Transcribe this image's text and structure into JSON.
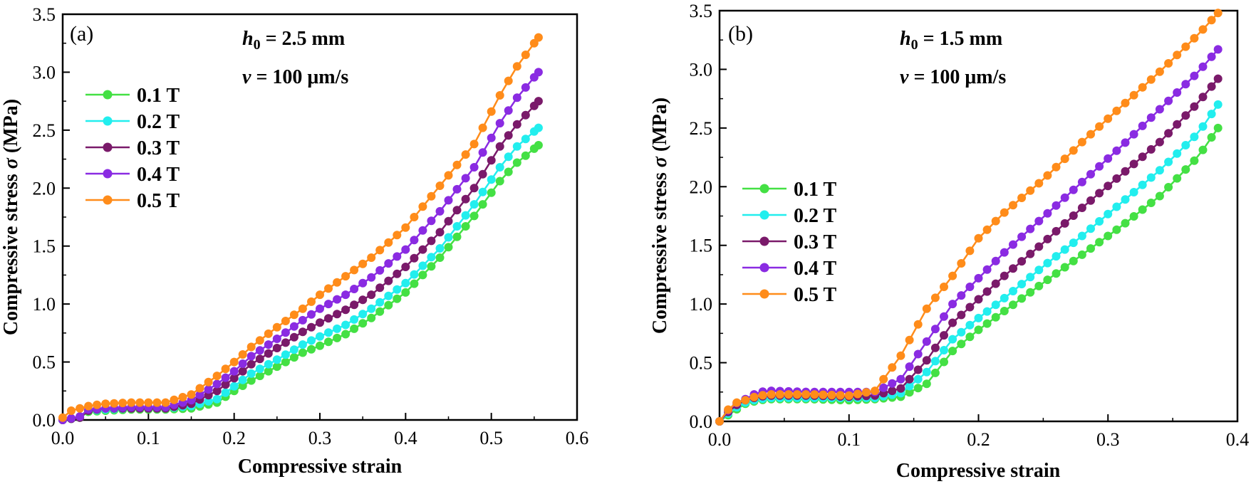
{
  "colors": {
    "0.1 T": "#44e044",
    "0.2 T": "#22eeee",
    "0.3 T": "#7a1a6a",
    "0.4 T": "#8a2be2",
    "0.5 T": "#ff8c1a"
  },
  "chart_data": [
    {
      "type": "line",
      "panel_label": "(a)",
      "annotation_h": "h",
      "annotation_h_sub": "0",
      "annotation_h_value": " = 2.5 mm",
      "annotation_v": "v",
      "annotation_v_value": " = 100 μm/s",
      "xlabel": "Compressive strain",
      "ylabel_main": "Compressive stress ",
      "ylabel_sym": "σ",
      "ylabel_unit": " (MPa)",
      "xlim": [
        0,
        0.6
      ],
      "ylim": [
        0,
        3.5
      ],
      "xticks": [
        "0.0",
        "0.1",
        "0.2",
        "0.3",
        "0.4",
        "0.5",
        "0.6"
      ],
      "yticks": [
        "0.0",
        "0.5",
        "1.0",
        "1.5",
        "2.0",
        "2.5",
        "3.0",
        "3.5"
      ],
      "legend": [
        "0.1 T",
        "0.2 T",
        "0.3 T",
        "0.4 T",
        "0.5 T"
      ],
      "series": [
        {
          "name": "0.1 T",
          "points": [
            [
              0,
              0
            ],
            [
              0.02,
              0.02
            ],
            [
              0.03,
              0.07
            ],
            [
              0.05,
              0.08
            ],
            [
              0.08,
              0.09
            ],
            [
              0.12,
              0.09
            ],
            [
              0.15,
              0.1
            ],
            [
              0.18,
              0.15
            ],
            [
              0.2,
              0.25
            ],
            [
              0.22,
              0.34
            ],
            [
              0.25,
              0.46
            ],
            [
              0.28,
              0.58
            ],
            [
              0.3,
              0.64
            ],
            [
              0.33,
              0.74
            ],
            [
              0.36,
              0.88
            ],
            [
              0.4,
              1.1
            ],
            [
              0.44,
              1.4
            ],
            [
              0.48,
              1.76
            ],
            [
              0.51,
              2.06
            ],
            [
              0.53,
              2.22
            ],
            [
              0.555,
              2.37
            ]
          ]
        },
        {
          "name": "0.2 T",
          "points": [
            [
              0,
              0
            ],
            [
              0.02,
              0.02
            ],
            [
              0.03,
              0.08
            ],
            [
              0.05,
              0.09
            ],
            [
              0.08,
              0.1
            ],
            [
              0.12,
              0.1
            ],
            [
              0.15,
              0.12
            ],
            [
              0.18,
              0.18
            ],
            [
              0.2,
              0.29
            ],
            [
              0.22,
              0.4
            ],
            [
              0.25,
              0.52
            ],
            [
              0.28,
              0.65
            ],
            [
              0.3,
              0.72
            ],
            [
              0.33,
              0.82
            ],
            [
              0.36,
              0.96
            ],
            [
              0.4,
              1.18
            ],
            [
              0.44,
              1.48
            ],
            [
              0.48,
              1.86
            ],
            [
              0.51,
              2.18
            ],
            [
              0.53,
              2.36
            ],
            [
              0.555,
              2.52
            ]
          ]
        },
        {
          "name": "0.3 T",
          "points": [
            [
              0,
              0
            ],
            [
              0.02,
              0.02
            ],
            [
              0.03,
              0.08
            ],
            [
              0.05,
              0.1
            ],
            [
              0.08,
              0.1
            ],
            [
              0.12,
              0.1
            ],
            [
              0.15,
              0.14
            ],
            [
              0.18,
              0.25
            ],
            [
              0.2,
              0.36
            ],
            [
              0.22,
              0.48
            ],
            [
              0.25,
              0.62
            ],
            [
              0.28,
              0.76
            ],
            [
              0.3,
              0.84
            ],
            [
              0.33,
              0.95
            ],
            [
              0.36,
              1.08
            ],
            [
              0.4,
              1.32
            ],
            [
              0.44,
              1.62
            ],
            [
              0.48,
              2.0
            ],
            [
              0.51,
              2.36
            ],
            [
              0.53,
              2.55
            ],
            [
              0.555,
              2.75
            ]
          ]
        },
        {
          "name": "0.4 T",
          "points": [
            [
              0,
              0
            ],
            [
              0.02,
              0.03
            ],
            [
              0.03,
              0.09
            ],
            [
              0.05,
              0.1
            ],
            [
              0.08,
              0.11
            ],
            [
              0.12,
              0.11
            ],
            [
              0.15,
              0.17
            ],
            [
              0.18,
              0.31
            ],
            [
              0.2,
              0.42
            ],
            [
              0.22,
              0.55
            ],
            [
              0.25,
              0.7
            ],
            [
              0.28,
              0.86
            ],
            [
              0.3,
              0.96
            ],
            [
              0.33,
              1.08
            ],
            [
              0.36,
              1.23
            ],
            [
              0.4,
              1.47
            ],
            [
              0.44,
              1.8
            ],
            [
              0.48,
              2.18
            ],
            [
              0.51,
              2.56
            ],
            [
              0.53,
              2.78
            ],
            [
              0.555,
              3.0
            ]
          ]
        },
        {
          "name": "0.5 T",
          "points": [
            [
              0,
              0.02
            ],
            [
              0.01,
              0.08
            ],
            [
              0.03,
              0.12
            ],
            [
              0.05,
              0.14
            ],
            [
              0.08,
              0.15
            ],
            [
              0.12,
              0.15
            ],
            [
              0.15,
              0.22
            ],
            [
              0.18,
              0.38
            ],
            [
              0.2,
              0.5
            ],
            [
              0.22,
              0.63
            ],
            [
              0.25,
              0.8
            ],
            [
              0.28,
              0.96
            ],
            [
              0.3,
              1.08
            ],
            [
              0.33,
              1.24
            ],
            [
              0.36,
              1.4
            ],
            [
              0.4,
              1.66
            ],
            [
              0.44,
              2.02
            ],
            [
              0.48,
              2.38
            ],
            [
              0.51,
              2.8
            ],
            [
              0.53,
              3.05
            ],
            [
              0.555,
              3.3
            ]
          ]
        }
      ]
    },
    {
      "type": "line",
      "panel_label": "(b)",
      "annotation_h": "h",
      "annotation_h_sub": "0",
      "annotation_h_value": " = 1.5 mm",
      "annotation_v": "v",
      "annotation_v_value": " = 100 μm/s",
      "xlabel": "Compressive strain",
      "ylabel_main": "Compressive stress ",
      "ylabel_sym": "σ",
      "ylabel_unit": " (MPa)",
      "xlim": [
        0,
        0.4
      ],
      "ylim": [
        0,
        3.5
      ],
      "xticks": [
        "0.0",
        "0.1",
        "0.2",
        "0.3",
        "0.4"
      ],
      "yticks": [
        "0.0",
        "0.5",
        "1.0",
        "1.5",
        "2.0",
        "2.5",
        "3.0",
        "3.5"
      ],
      "legend": [
        "0.1 T",
        "0.2 T",
        "0.3 T",
        "0.4 T",
        "0.5 T"
      ],
      "series": [
        {
          "name": "0.1 T",
          "points": [
            [
              0,
              0
            ],
            [
              0.01,
              0.08
            ],
            [
              0.02,
              0.15
            ],
            [
              0.03,
              0.18
            ],
            [
              0.04,
              0.19
            ],
            [
              0.07,
              0.19
            ],
            [
              0.1,
              0.18
            ],
            [
              0.12,
              0.19
            ],
            [
              0.14,
              0.21
            ],
            [
              0.16,
              0.32
            ],
            [
              0.18,
              0.6
            ],
            [
              0.2,
              0.78
            ],
            [
              0.22,
              0.94
            ],
            [
              0.25,
              1.18
            ],
            [
              0.28,
              1.42
            ],
            [
              0.31,
              1.66
            ],
            [
              0.34,
              1.92
            ],
            [
              0.37,
              2.26
            ],
            [
              0.385,
              2.5
            ]
          ]
        },
        {
          "name": "0.2 T",
          "points": [
            [
              0,
              0
            ],
            [
              0.01,
              0.1
            ],
            [
              0.02,
              0.16
            ],
            [
              0.03,
              0.19
            ],
            [
              0.04,
              0.2
            ],
            [
              0.07,
              0.2
            ],
            [
              0.1,
              0.2
            ],
            [
              0.12,
              0.2
            ],
            [
              0.14,
              0.24
            ],
            [
              0.16,
              0.42
            ],
            [
              0.18,
              0.7
            ],
            [
              0.2,
              0.88
            ],
            [
              0.22,
              1.05
            ],
            [
              0.25,
              1.32
            ],
            [
              0.28,
              1.58
            ],
            [
              0.31,
              1.86
            ],
            [
              0.34,
              2.14
            ],
            [
              0.37,
              2.46
            ],
            [
              0.385,
              2.7
            ]
          ]
        },
        {
          "name": "0.3 T",
          "points": [
            [
              0,
              0
            ],
            [
              0.01,
              0.12
            ],
            [
              0.02,
              0.18
            ],
            [
              0.03,
              0.21
            ],
            [
              0.04,
              0.22
            ],
            [
              0.07,
              0.22
            ],
            [
              0.1,
              0.21
            ],
            [
              0.12,
              0.22
            ],
            [
              0.14,
              0.28
            ],
            [
              0.16,
              0.52
            ],
            [
              0.18,
              0.84
            ],
            [
              0.2,
              1.04
            ],
            [
              0.22,
              1.24
            ],
            [
              0.25,
              1.52
            ],
            [
              0.28,
              1.82
            ],
            [
              0.31,
              2.1
            ],
            [
              0.34,
              2.38
            ],
            [
              0.37,
              2.72
            ],
            [
              0.385,
              2.92
            ]
          ]
        },
        {
          "name": "0.4 T",
          "points": [
            [
              0,
              0
            ],
            [
              0.01,
              0.14
            ],
            [
              0.02,
              0.19
            ],
            [
              0.03,
              0.25
            ],
            [
              0.04,
              0.26
            ],
            [
              0.07,
              0.25
            ],
            [
              0.1,
              0.25
            ],
            [
              0.12,
              0.25
            ],
            [
              0.14,
              0.36
            ],
            [
              0.16,
              0.68
            ],
            [
              0.18,
              1.0
            ],
            [
              0.2,
              1.22
            ],
            [
              0.22,
              1.44
            ],
            [
              0.25,
              1.74
            ],
            [
              0.28,
              2.04
            ],
            [
              0.31,
              2.34
            ],
            [
              0.34,
              2.66
            ],
            [
              0.37,
              2.98
            ],
            [
              0.385,
              3.17
            ]
          ]
        },
        {
          "name": "0.5 T",
          "points": [
            [
              0,
              0
            ],
            [
              0.01,
              0.15
            ],
            [
              0.02,
              0.18
            ],
            [
              0.03,
              0.22
            ],
            [
              0.04,
              0.23
            ],
            [
              0.07,
              0.23
            ],
            [
              0.1,
              0.22
            ],
            [
              0.12,
              0.26
            ],
            [
              0.14,
              0.56
            ],
            [
              0.16,
              0.96
            ],
            [
              0.18,
              1.24
            ],
            [
              0.2,
              1.56
            ],
            [
              0.22,
              1.78
            ],
            [
              0.25,
              2.06
            ],
            [
              0.28,
              2.38
            ],
            [
              0.31,
              2.68
            ],
            [
              0.34,
              2.98
            ],
            [
              0.37,
              3.3
            ],
            [
              0.385,
              3.48
            ]
          ]
        }
      ]
    }
  ]
}
